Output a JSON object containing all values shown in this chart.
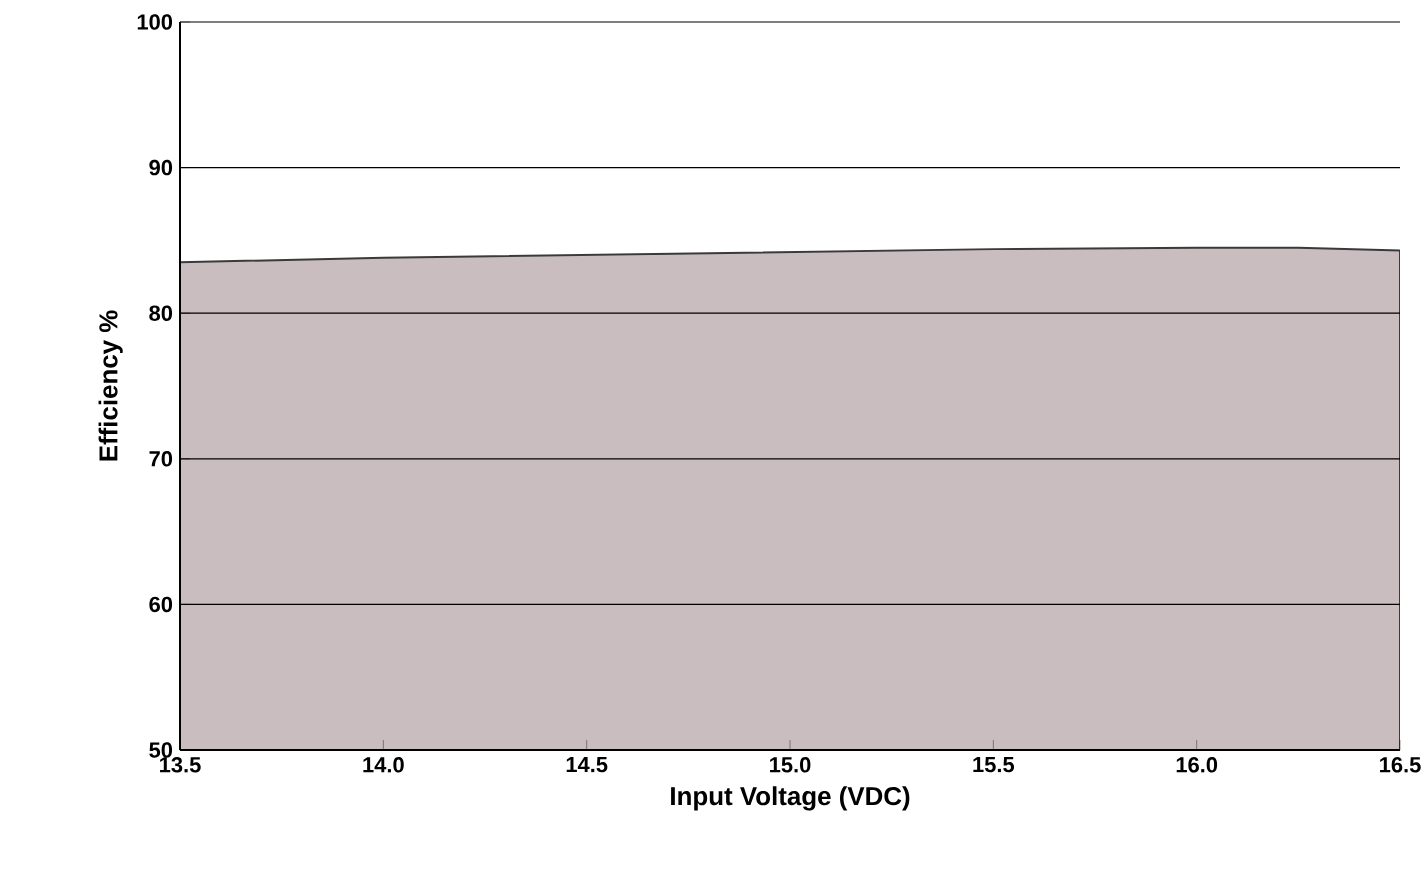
{
  "chart_data": {
    "type": "area",
    "xlabel": "Input Voltage (VDC)",
    "ylabel": "Efficiency %",
    "x": [
      13.5,
      14.0,
      14.5,
      15.0,
      15.5,
      16.0,
      16.25,
      16.5
    ],
    "values": [
      83.5,
      83.8,
      84.0,
      84.2,
      84.4,
      84.5,
      84.5,
      84.3
    ],
    "color": "#c9bdbf",
    "xlim": [
      13.5,
      16.5
    ],
    "xticks": [
      {
        "value": 13.5,
        "label": "13.5"
      },
      {
        "value": 14,
        "label": "14.0"
      },
      {
        "value": 14.5,
        "label": "14.5"
      },
      {
        "value": 15,
        "label": "15.0"
      },
      {
        "value": 15.5,
        "label": "15.5"
      },
      {
        "value": 16,
        "label": "16.0"
      },
      {
        "value": 16.5,
        "label": "16.5"
      }
    ],
    "ylim": [
      50,
      100
    ],
    "yticks": [
      50,
      60,
      70,
      80,
      90,
      100
    ],
    "grid": "y"
  }
}
